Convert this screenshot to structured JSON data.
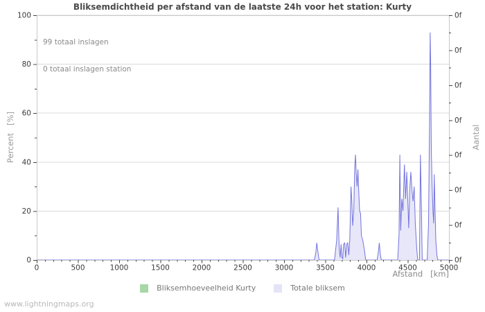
{
  "annotations": {
    "line1": "99 totaal inslagen",
    "line2": "0 totaal inslagen station"
  },
  "watermark": "www.lightningmaps.org",
  "chart_data": {
    "type": "area",
    "title": "Bliksemdichtheid per afstand van de laatste 24h voor het station: Kurty",
    "xlabel": "Afstand   [km]",
    "ylabel_left": "Percent   [%]",
    "ylabel_right": "Aantal",
    "xlim": [
      0,
      5000
    ],
    "ylim": [
      0,
      100
    ],
    "x_major_ticks": [
      0,
      500,
      1000,
      1500,
      2000,
      2500,
      3000,
      3500,
      4000,
      4500,
      5000
    ],
    "x_minor_step": 100,
    "y_left_major_ticks": [
      0,
      20,
      40,
      60,
      80,
      100
    ],
    "y_left_minor_step": 10,
    "y_right_tick_labels": [
      "0f",
      "0f",
      "0f",
      "0f",
      "0f",
      "0f",
      "0f",
      "0f"
    ],
    "grid_y": [
      20,
      40,
      60,
      80,
      100
    ],
    "grid": "horizontal-only",
    "legend": {
      "position": "bottom",
      "entries": [
        {
          "label": "Bliksemhoeveelheid Kurty",
          "swatch_color": "#a7d7a7"
        },
        {
          "label": "Totale bliksem",
          "swatch_color": "#e4e4f8"
        }
      ]
    },
    "series": [
      {
        "name": "Bliksemhoeveelheid Kurty",
        "line_color": "#9ccf9c",
        "fill_color": "#c8e6c8",
        "points": [
          [
            0,
            0
          ],
          [
            5000,
            0
          ]
        ]
      },
      {
        "name": "Totale bliksem",
        "line_color": "#7373dc",
        "fill_color": "#e7e7f9",
        "points": [
          [
            0,
            0
          ],
          [
            3368,
            0
          ],
          [
            3385,
            3
          ],
          [
            3397,
            7
          ],
          [
            3412,
            3
          ],
          [
            3425,
            0
          ],
          [
            3612,
            0
          ],
          [
            3638,
            8
          ],
          [
            3655,
            21.5
          ],
          [
            3668,
            5
          ],
          [
            3680,
            1
          ],
          [
            3692,
            6.5
          ],
          [
            3702,
            1
          ],
          [
            3712,
            0.5
          ],
          [
            3722,
            6.5
          ],
          [
            3735,
            7
          ],
          [
            3747,
            1
          ],
          [
            3760,
            6.5
          ],
          [
            3772,
            7
          ],
          [
            3785,
            2
          ],
          [
            3797,
            8
          ],
          [
            3812,
            30
          ],
          [
            3822,
            24
          ],
          [
            3832,
            14
          ],
          [
            3845,
            20
          ],
          [
            3857,
            38
          ],
          [
            3866,
            43
          ],
          [
            3876,
            35
          ],
          [
            3886,
            30
          ],
          [
            3896,
            37
          ],
          [
            3906,
            28
          ],
          [
            3916,
            20
          ],
          [
            3928,
            19
          ],
          [
            3938,
            10
          ],
          [
            3955,
            8
          ],
          [
            3975,
            4
          ],
          [
            3990,
            0
          ],
          [
            4128,
            0
          ],
          [
            4143,
            3
          ],
          [
            4155,
            7
          ],
          [
            4168,
            2
          ],
          [
            4180,
            0
          ],
          [
            4378,
            0
          ],
          [
            4394,
            10
          ],
          [
            4404,
            43
          ],
          [
            4414,
            12
          ],
          [
            4428,
            25
          ],
          [
            4442,
            20
          ],
          [
            4460,
            39
          ],
          [
            4474,
            25
          ],
          [
            4488,
            36
          ],
          [
            4500,
            25
          ],
          [
            4512,
            13
          ],
          [
            4526,
            30
          ],
          [
            4538,
            36
          ],
          [
            4552,
            28
          ],
          [
            4564,
            24
          ],
          [
            4578,
            30
          ],
          [
            4592,
            15
          ],
          [
            4608,
            5
          ],
          [
            4620,
            0
          ],
          [
            4642,
            0
          ],
          [
            4654,
            43
          ],
          [
            4666,
            20
          ],
          [
            4676,
            0
          ],
          [
            4736,
            0
          ],
          [
            4752,
            15
          ],
          [
            4764,
            55
          ],
          [
            4772,
            93
          ],
          [
            4778,
            80
          ],
          [
            4786,
            45
          ],
          [
            4796,
            30
          ],
          [
            4806,
            20
          ],
          [
            4814,
            15
          ],
          [
            4822,
            35
          ],
          [
            4830,
            22
          ],
          [
            4840,
            8
          ],
          [
            4854,
            2
          ],
          [
            4864,
            0
          ],
          [
            5000,
            0
          ]
        ]
      }
    ]
  }
}
